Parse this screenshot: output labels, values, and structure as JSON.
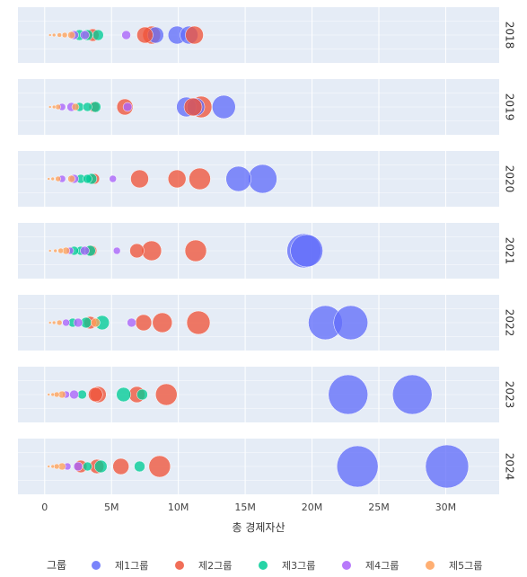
{
  "chart_data": {
    "type": "scatter",
    "xlabel": "총 경제자산",
    "x_ticks": [
      {
        "value": 0,
        "label": "0"
      },
      {
        "value": 5000000,
        "label": "5M"
      },
      {
        "value": 10000000,
        "label": "10M"
      },
      {
        "value": 15000000,
        "label": "15M"
      },
      {
        "value": 20000000,
        "label": "20M"
      },
      {
        "value": 25000000,
        "label": "25M"
      },
      {
        "value": 30000000,
        "label": "30M"
      }
    ],
    "xlim": [
      -2000000,
      34000000
    ],
    "grid": true,
    "legend_title": "그룹",
    "legend_position": "bottom",
    "groups": [
      {
        "name": "제1그룹",
        "color": "#636efa"
      },
      {
        "name": "제2그룹",
        "color": "#ef553b"
      },
      {
        "name": "제3그룹",
        "color": "#00cc96"
      },
      {
        "name": "제4그룹",
        "color": "#ab63fa"
      },
      {
        "name": "제5그룹",
        "color": "#ffa15a"
      }
    ],
    "facets": [
      {
        "label": "2018",
        "points": [
          {
            "g": 0,
            "x": 9900000,
            "s": 10
          },
          {
            "g": 0,
            "x": 10800000,
            "s": 10
          },
          {
            "g": 0,
            "x": 8300000,
            "s": 9
          },
          {
            "g": 1,
            "x": 11200000,
            "s": 10
          },
          {
            "g": 1,
            "x": 8000000,
            "s": 10
          },
          {
            "g": 1,
            "x": 7500000,
            "s": 9
          },
          {
            "g": 1,
            "x": 3600000,
            "s": 7
          },
          {
            "g": 2,
            "x": 4000000,
            "s": 6
          },
          {
            "g": 2,
            "x": 2600000,
            "s": 6
          },
          {
            "g": 2,
            "x": 3200000,
            "s": 6
          },
          {
            "g": 3,
            "x": 6100000,
            "s": 5
          },
          {
            "g": 3,
            "x": 2200000,
            "s": 5
          },
          {
            "g": 3,
            "x": 3000000,
            "s": 5
          },
          {
            "g": 4,
            "x": 2000000,
            "s": 4
          },
          {
            "g": 4,
            "x": 1500000,
            "s": 3
          },
          {
            "g": 4,
            "x": 1100000,
            "s": 2.5
          },
          {
            "g": 4,
            "x": 700000,
            "s": 2
          },
          {
            "g": 4,
            "x": 400000,
            "s": 1.5
          }
        ]
      },
      {
        "label": "2019",
        "points": [
          {
            "g": 0,
            "x": 13400000,
            "s": 13
          },
          {
            "g": 0,
            "x": 10600000,
            "s": 11
          },
          {
            "g": 0,
            "x": 11300000,
            "s": 10
          },
          {
            "g": 1,
            "x": 11700000,
            "s": 12
          },
          {
            "g": 1,
            "x": 11100000,
            "s": 10
          },
          {
            "g": 1,
            "x": 6000000,
            "s": 9
          },
          {
            "g": 1,
            "x": 3700000,
            "s": 6
          },
          {
            "g": 2,
            "x": 3800000,
            "s": 6
          },
          {
            "g": 2,
            "x": 2600000,
            "s": 5
          },
          {
            "g": 2,
            "x": 3200000,
            "s": 5
          },
          {
            "g": 3,
            "x": 6200000,
            "s": 5
          },
          {
            "g": 3,
            "x": 2000000,
            "s": 5
          },
          {
            "g": 3,
            "x": 1300000,
            "s": 4
          },
          {
            "g": 4,
            "x": 2300000,
            "s": 4
          },
          {
            "g": 4,
            "x": 1000000,
            "s": 3
          },
          {
            "g": 4,
            "x": 700000,
            "s": 2
          },
          {
            "g": 4,
            "x": 400000,
            "s": 1.5
          }
        ]
      },
      {
        "label": "2020",
        "points": [
          {
            "g": 0,
            "x": 16300000,
            "s": 16
          },
          {
            "g": 0,
            "x": 14500000,
            "s": 14
          },
          {
            "g": 1,
            "x": 11600000,
            "s": 12
          },
          {
            "g": 1,
            "x": 9900000,
            "s": 10
          },
          {
            "g": 1,
            "x": 7100000,
            "s": 10
          },
          {
            "g": 1,
            "x": 3700000,
            "s": 6
          },
          {
            "g": 2,
            "x": 3500000,
            "s": 6
          },
          {
            "g": 2,
            "x": 2700000,
            "s": 5
          },
          {
            "g": 2,
            "x": 3200000,
            "s": 5
          },
          {
            "g": 3,
            "x": 5100000,
            "s": 4
          },
          {
            "g": 3,
            "x": 2200000,
            "s": 5
          },
          {
            "g": 3,
            "x": 1300000,
            "s": 4
          },
          {
            "g": 4,
            "x": 2000000,
            "s": 4
          },
          {
            "g": 4,
            "x": 1000000,
            "s": 3
          },
          {
            "g": 4,
            "x": 600000,
            "s": 2
          },
          {
            "g": 4,
            "x": 300000,
            "s": 1.5
          }
        ]
      },
      {
        "label": "2021",
        "points": [
          {
            "g": 0,
            "x": 19400000,
            "s": 19
          },
          {
            "g": 0,
            "x": 19600000,
            "s": 18
          },
          {
            "g": 1,
            "x": 11300000,
            "s": 12
          },
          {
            "g": 1,
            "x": 8000000,
            "s": 11
          },
          {
            "g": 1,
            "x": 6900000,
            "s": 8
          },
          {
            "g": 1,
            "x": 3500000,
            "s": 6
          },
          {
            "g": 2,
            "x": 3400000,
            "s": 6
          },
          {
            "g": 2,
            "x": 2700000,
            "s": 5
          },
          {
            "g": 2,
            "x": 2200000,
            "s": 5
          },
          {
            "g": 3,
            "x": 5400000,
            "s": 4
          },
          {
            "g": 3,
            "x": 3000000,
            "s": 5
          },
          {
            "g": 3,
            "x": 1900000,
            "s": 4
          },
          {
            "g": 4,
            "x": 1600000,
            "s": 4
          },
          {
            "g": 4,
            "x": 1200000,
            "s": 3
          },
          {
            "g": 4,
            "x": 800000,
            "s": 2
          },
          {
            "g": 4,
            "x": 400000,
            "s": 1.5
          }
        ]
      },
      {
        "label": "2022",
        "points": [
          {
            "g": 0,
            "x": 21000000,
            "s": 19
          },
          {
            "g": 0,
            "x": 22900000,
            "s": 19
          },
          {
            "g": 1,
            "x": 11500000,
            "s": 13
          },
          {
            "g": 1,
            "x": 8800000,
            "s": 11
          },
          {
            "g": 1,
            "x": 7400000,
            "s": 9
          },
          {
            "g": 1,
            "x": 3400000,
            "s": 7
          },
          {
            "g": 2,
            "x": 4300000,
            "s": 8
          },
          {
            "g": 2,
            "x": 3100000,
            "s": 6
          },
          {
            "g": 2,
            "x": 2100000,
            "s": 5
          },
          {
            "g": 3,
            "x": 6500000,
            "s": 5
          },
          {
            "g": 3,
            "x": 2500000,
            "s": 5
          },
          {
            "g": 3,
            "x": 1600000,
            "s": 4
          },
          {
            "g": 4,
            "x": 3800000,
            "s": 5
          },
          {
            "g": 4,
            "x": 1100000,
            "s": 3
          },
          {
            "g": 4,
            "x": 700000,
            "s": 2
          },
          {
            "g": 4,
            "x": 400000,
            "s": 1.5
          }
        ]
      },
      {
        "label": "2023",
        "points": [
          {
            "g": 0,
            "x": 27500000,
            "s": 22
          },
          {
            "g": 0,
            "x": 22700000,
            "s": 22
          },
          {
            "g": 1,
            "x": 9100000,
            "s": 12
          },
          {
            "g": 1,
            "x": 6900000,
            "s": 9
          },
          {
            "g": 1,
            "x": 4000000,
            "s": 9
          },
          {
            "g": 1,
            "x": 3800000,
            "s": 8
          },
          {
            "g": 2,
            "x": 5900000,
            "s": 8
          },
          {
            "g": 2,
            "x": 7300000,
            "s": 6
          },
          {
            "g": 2,
            "x": 2800000,
            "s": 5
          },
          {
            "g": 3,
            "x": 2200000,
            "s": 5
          },
          {
            "g": 3,
            "x": 1600000,
            "s": 4
          },
          {
            "g": 4,
            "x": 1300000,
            "s": 4
          },
          {
            "g": 4,
            "x": 900000,
            "s": 3
          },
          {
            "g": 4,
            "x": 600000,
            "s": 2
          },
          {
            "g": 4,
            "x": 300000,
            "s": 1.5
          }
        ]
      },
      {
        "label": "2024",
        "points": [
          {
            "g": 0,
            "x": 30100000,
            "s": 24
          },
          {
            "g": 0,
            "x": 23400000,
            "s": 23
          },
          {
            "g": 1,
            "x": 8600000,
            "s": 12
          },
          {
            "g": 1,
            "x": 5700000,
            "s": 9
          },
          {
            "g": 1,
            "x": 3900000,
            "s": 8
          },
          {
            "g": 1,
            "x": 2700000,
            "s": 7
          },
          {
            "g": 2,
            "x": 4200000,
            "s": 7
          },
          {
            "g": 2,
            "x": 7100000,
            "s": 6
          },
          {
            "g": 2,
            "x": 3200000,
            "s": 5
          },
          {
            "g": 3,
            "x": 2500000,
            "s": 5
          },
          {
            "g": 3,
            "x": 1700000,
            "s": 4
          },
          {
            "g": 4,
            "x": 1300000,
            "s": 4
          },
          {
            "g": 4,
            "x": 900000,
            "s": 3
          },
          {
            "g": 4,
            "x": 600000,
            "s": 2
          },
          {
            "g": 4,
            "x": 300000,
            "s": 1.5
          }
        ]
      }
    ]
  }
}
